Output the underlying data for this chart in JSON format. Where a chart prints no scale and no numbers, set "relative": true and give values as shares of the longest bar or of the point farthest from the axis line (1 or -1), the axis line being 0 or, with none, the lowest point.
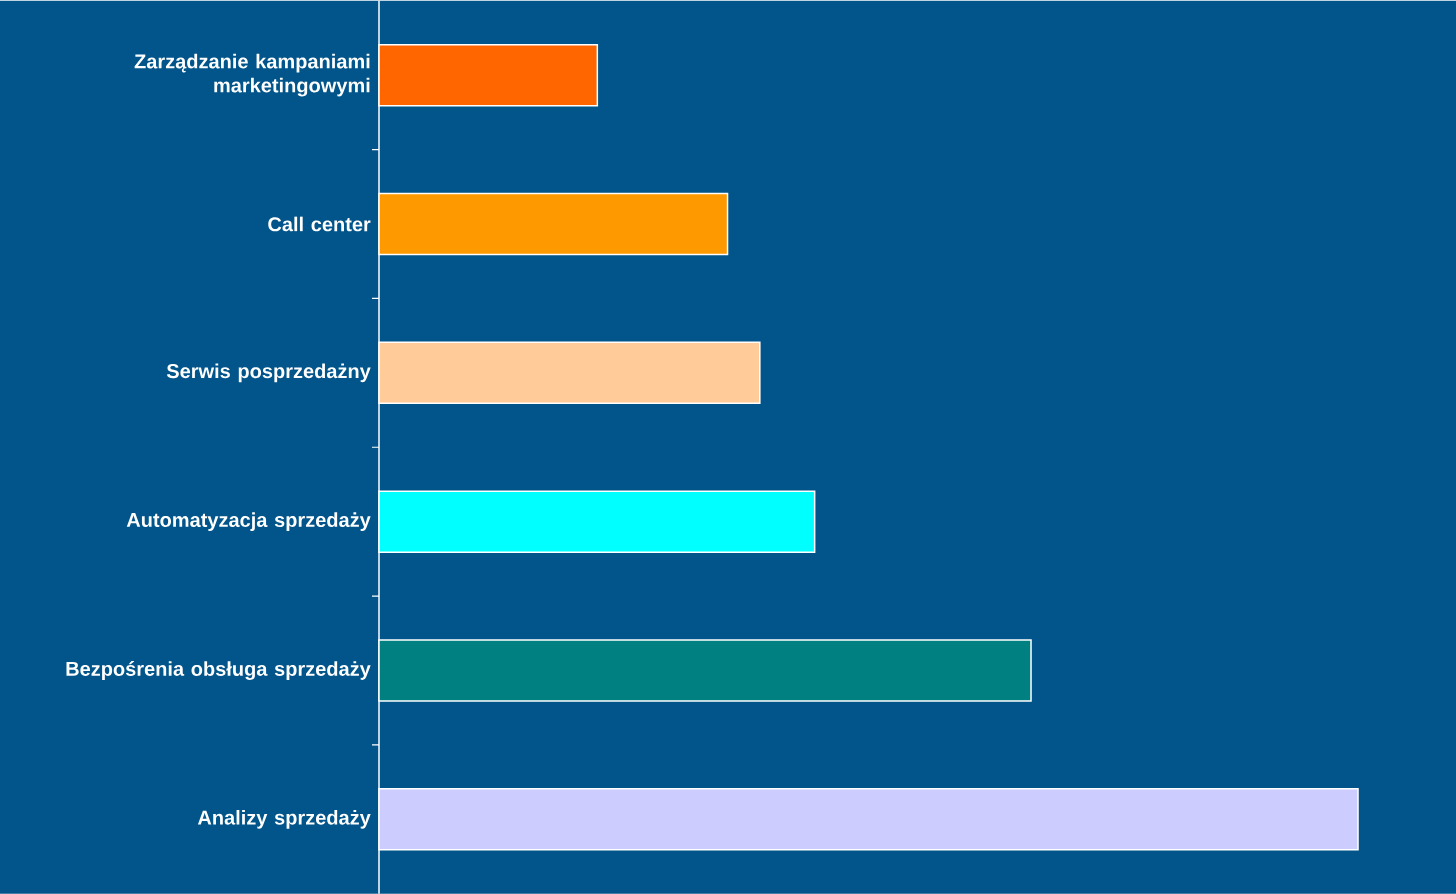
{
  "chart_data": {
    "type": "bar",
    "orientation": "horizontal",
    "relative": true,
    "categories": [
      "Zarządzanie kampaniami marketingowymi",
      "Call center",
      "Serwis posprzedażny",
      "Automatyzacja sprzedaży",
      "Bezpośrenia obsługa sprzedaży",
      "Analizy sprzedaży"
    ],
    "values": [
      0.223,
      0.356,
      0.389,
      0.445,
      0.666,
      1
    ],
    "colors": [
      "#ff6600",
      "#ff9900",
      "#ffcc99",
      "#00ffff",
      "#008080",
      "#ccccff"
    ]
  }
}
